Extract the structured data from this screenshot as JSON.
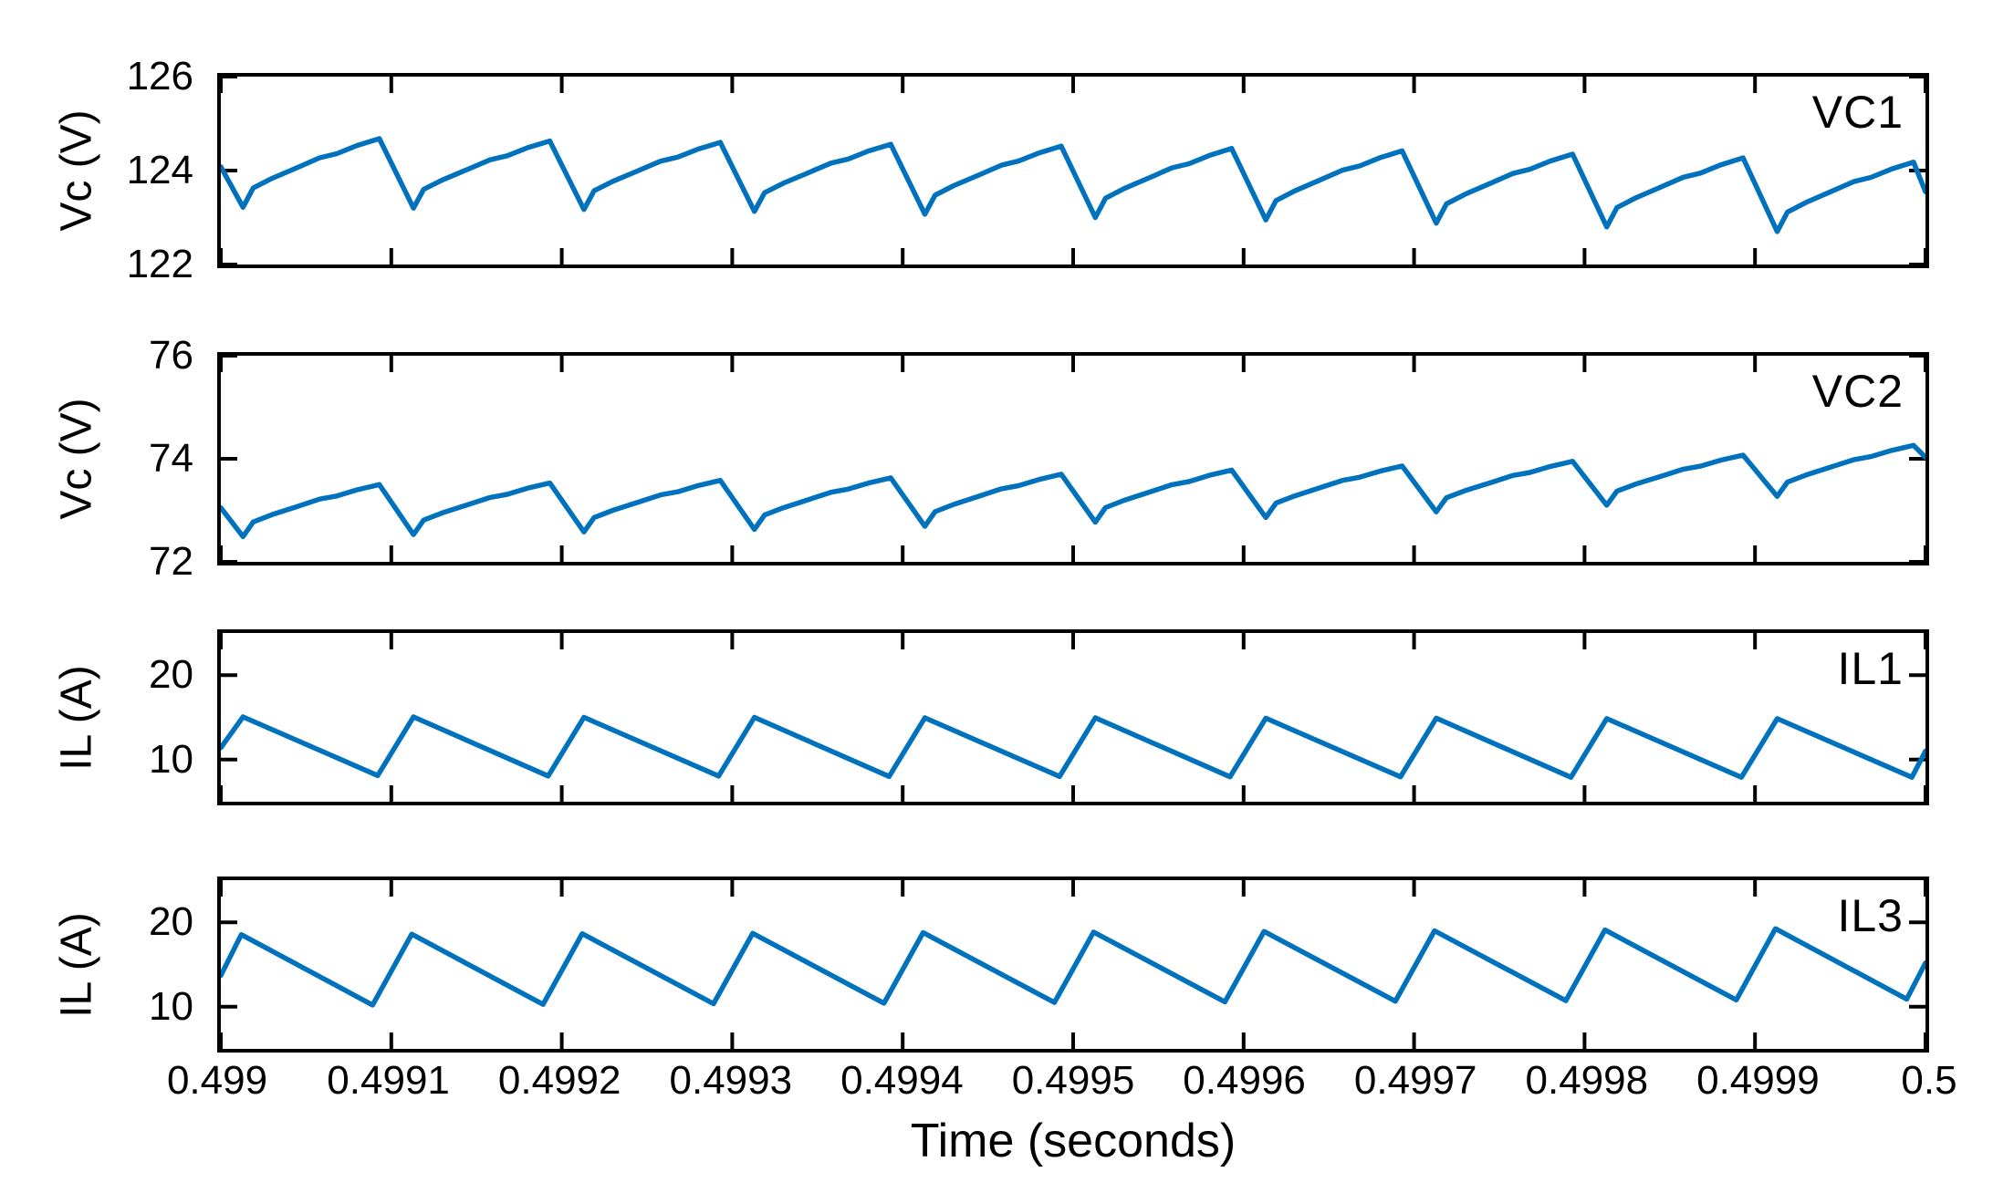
{
  "figure": {
    "background": "#ffffff",
    "line_color": "#0072BD",
    "axis_color": "#000000",
    "line_width": 5.5,
    "tick_length": 18,
    "tick_width": 4,
    "xlabel": "Time (seconds)",
    "x_ticks": {
      "labels": [
        "0.499",
        "0.4991",
        "0.4992",
        "0.4993",
        "0.4994",
        "0.4995",
        "0.4996",
        "0.4997",
        "0.4998",
        "0.4999",
        "0.5"
      ],
      "values": [
        0.499,
        0.4991,
        0.4992,
        0.4993,
        0.4994,
        0.4995,
        0.4996,
        0.4997,
        0.4998,
        0.4999,
        0.5
      ]
    },
    "x_range": [
      0.499,
      0.5
    ],
    "rise_profile": [
      [
        0.13,
        0.0
      ],
      [
        0.19,
        0.28
      ],
      [
        0.3,
        0.42
      ],
      [
        0.45,
        0.58
      ],
      [
        0.58,
        0.72
      ],
      [
        0.68,
        0.78
      ],
      [
        0.8,
        0.9
      ],
      [
        0.93,
        1.0
      ]
    ]
  },
  "chart_data": [
    {
      "type": "line",
      "label": "VC1",
      "ylabel": "Vc (V)",
      "ylim": [
        122,
        126
      ],
      "yticks": [
        126,
        124,
        122
      ],
      "x_start": 0.499,
      "x_end": 0.5,
      "period": 0.0001,
      "cycles": 10,
      "waveform": "capacitor_sawtooth",
      "peak_phase": 0.93,
      "min_phase": 0.13,
      "peaks": [
        124.68,
        124.63,
        124.6,
        124.56,
        124.52,
        124.47,
        124.42,
        124.35,
        124.27,
        124.18
      ],
      "mins": [
        123.22,
        123.2,
        123.17,
        123.13,
        123.07,
        123.0,
        122.95,
        122.88,
        122.8,
        122.7
      ],
      "edge_start": 124.08,
      "edge_end": 123.55
    },
    {
      "type": "line",
      "label": "VC2",
      "ylabel": "Vc (V)",
      "ylim": [
        72,
        76
      ],
      "yticks": [
        76,
        74,
        72
      ],
      "x_start": 0.499,
      "x_end": 0.5,
      "period": 0.0001,
      "cycles": 10,
      "waveform": "capacitor_sawtooth",
      "peak_phase": 0.92,
      "min_phase": 0.12,
      "peaks": [
        73.5,
        73.53,
        73.58,
        73.63,
        73.7,
        73.78,
        73.86,
        73.95,
        74.07,
        74.26
      ],
      "mins": [
        72.49,
        72.53,
        72.58,
        72.63,
        72.69,
        72.77,
        72.86,
        72.97,
        73.1,
        73.27
      ],
      "edge_start": 73.05,
      "edge_end": 74.03
    },
    {
      "type": "line",
      "label": "IL1",
      "ylabel": "IL (A)",
      "ylim": [
        5,
        25
      ],
      "yticks": [
        20,
        10
      ],
      "x_start": 0.499,
      "x_end": 0.5,
      "period": 0.0001,
      "cycles": 10,
      "waveform": "inductor_triangle",
      "peak_phase": 0.13,
      "min_phase": 0.92,
      "peaks": [
        15.05,
        15.05,
        15.0,
        15.0,
        14.95,
        14.95,
        14.9,
        14.9,
        14.85,
        14.85
      ],
      "mins": [
        8.1,
        8.05,
        8.05,
        8.0,
        8.0,
        7.95,
        7.95,
        7.9,
        7.9,
        7.9
      ],
      "edge_start": 11.4,
      "edge_end": 11.0
    },
    {
      "type": "line",
      "label": "IL3",
      "ylabel": "IL (A)",
      "ylim": [
        5,
        25
      ],
      "yticks": [
        20,
        10
      ],
      "x_start": 0.499,
      "x_end": 0.5,
      "period": 0.0001,
      "cycles": 10,
      "waveform": "inductor_triangle",
      "peak_phase": 0.12,
      "min_phase": 0.89,
      "peaks": [
        18.55,
        18.6,
        18.65,
        18.7,
        18.78,
        18.85,
        18.92,
        19.0,
        19.1,
        19.25
      ],
      "mins": [
        10.2,
        10.28,
        10.35,
        10.42,
        10.5,
        10.58,
        10.65,
        10.72,
        10.8,
        10.9
      ],
      "edge_start": 13.7,
      "edge_end": 15.2
    }
  ]
}
